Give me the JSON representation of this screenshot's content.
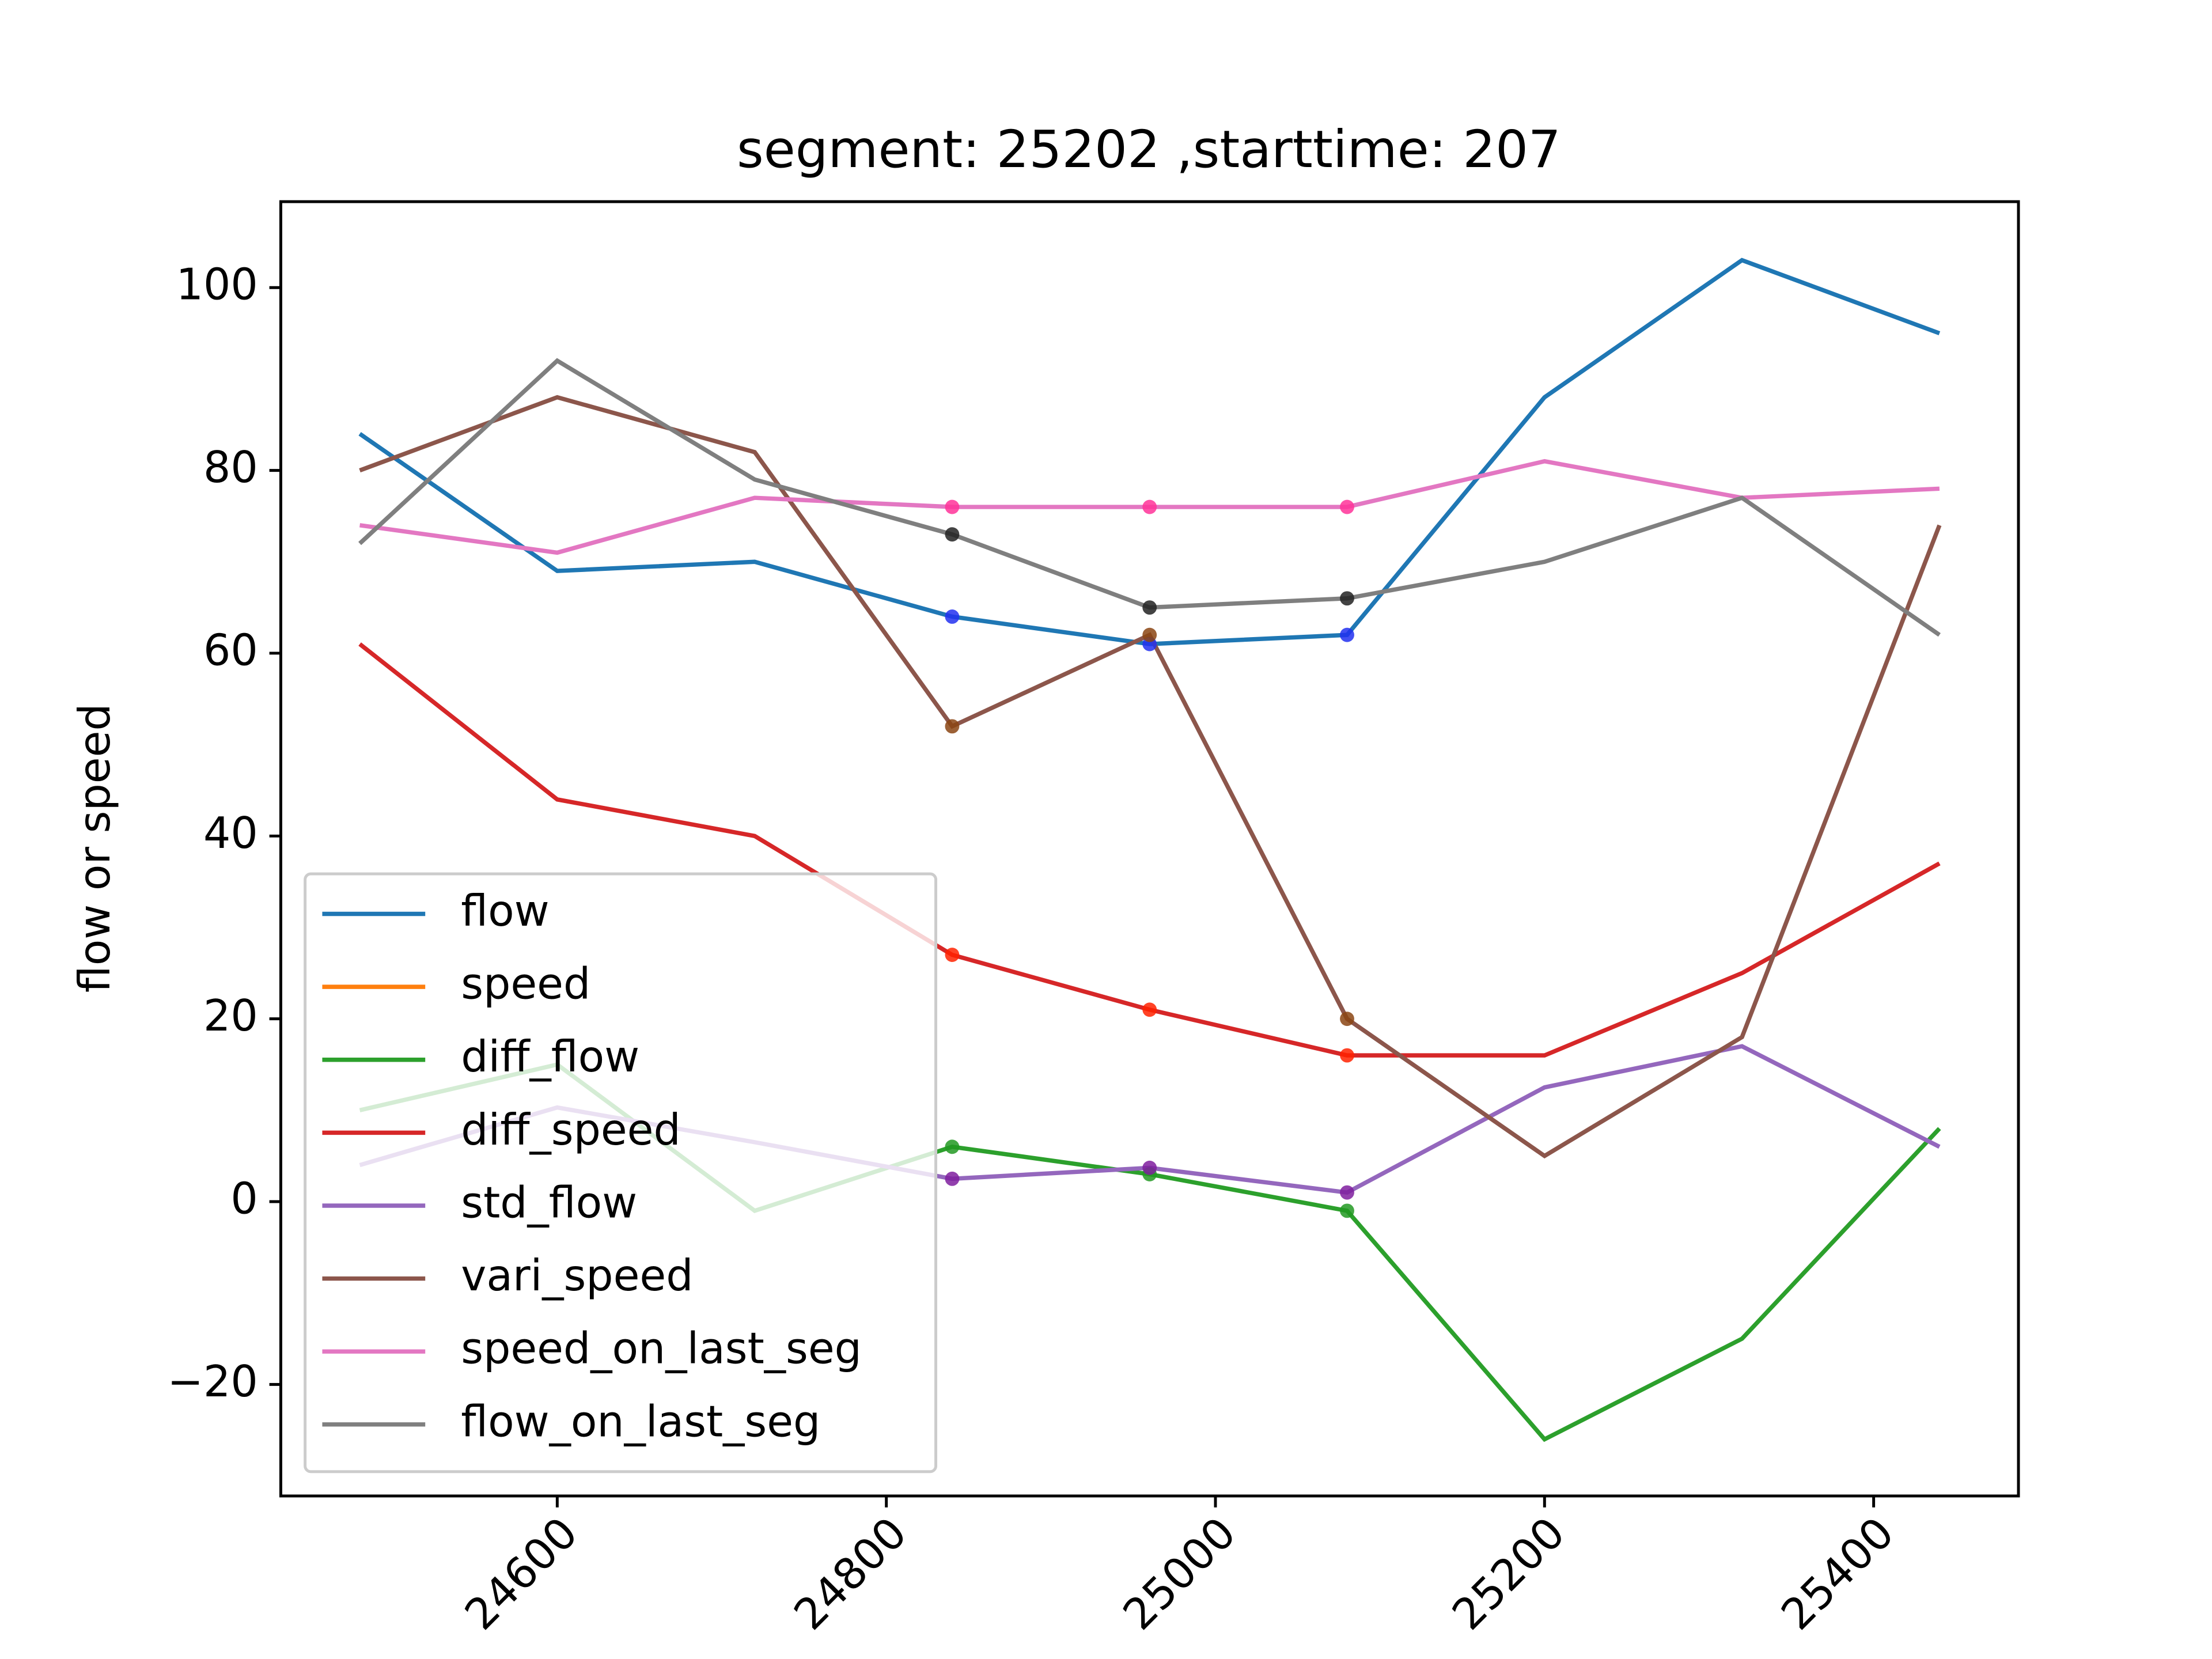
{
  "chart_data": {
    "type": "line",
    "title": "segment: 25202 ,starttime: 207",
    "ylabel": "flow or speed",
    "x": [
      24480,
      24600,
      24720,
      24840,
      24960,
      25080,
      25200,
      25320,
      25440
    ],
    "xlim": [
      24432,
      25488
    ],
    "xticks": [
      24600,
      24800,
      25000,
      25200,
      25400
    ],
    "ylim": [
      -32.2,
      109.4
    ],
    "yticks": [
      {
        "value": -20,
        "label": "−20"
      },
      0,
      20,
      40,
      60,
      80,
      100
    ],
    "highlight_x": [
      24840,
      24960,
      25080
    ],
    "legend": "lower left",
    "series": [
      {
        "name": "flow",
        "color": "#1f77b4",
        "marker_color": "#2230f0",
        "values": [
          84,
          69,
          70,
          64,
          61,
          62,
          88,
          103,
          95
        ]
      },
      {
        "name": "speed",
        "color": "#ff7f0e",
        "marker_color": "#ff7f0e",
        "values": [
          null,
          null,
          null,
          null,
          null,
          null,
          null,
          null,
          null
        ]
      },
      {
        "name": "diff_flow",
        "color": "#2ca02c",
        "marker_color": "#229922",
        "values": [
          10,
          15,
          -1,
          6,
          3,
          -1,
          -26,
          -15,
          8
        ]
      },
      {
        "name": "diff_speed",
        "color": "#d62728",
        "marker_color": "#ff2200",
        "values": [
          61,
          44,
          40,
          27,
          21,
          16,
          16,
          25,
          37
        ]
      },
      {
        "name": "std_flow",
        "color": "#9467bd",
        "marker_color": "#7f1f9f",
        "values": [
          4,
          10.3,
          6.5,
          2.5,
          3.7,
          1,
          12.5,
          17,
          6
        ]
      },
      {
        "name": "vari_speed",
        "color": "#8c564b",
        "marker_color": "#8b4513",
        "values": [
          80,
          88,
          82,
          52,
          62,
          20,
          5,
          18,
          74
        ]
      },
      {
        "name": "speed_on_last_seg",
        "color": "#e377c2",
        "marker_color": "#ff3399",
        "values": [
          74,
          71,
          77,
          76,
          76,
          76,
          81,
          77,
          78
        ]
      },
      {
        "name": "flow_on_last_seg",
        "color": "#7f7f7f",
        "marker_color": "#222222",
        "values": [
          72,
          92,
          79,
          73,
          65,
          66,
          70,
          77,
          62
        ]
      }
    ]
  }
}
